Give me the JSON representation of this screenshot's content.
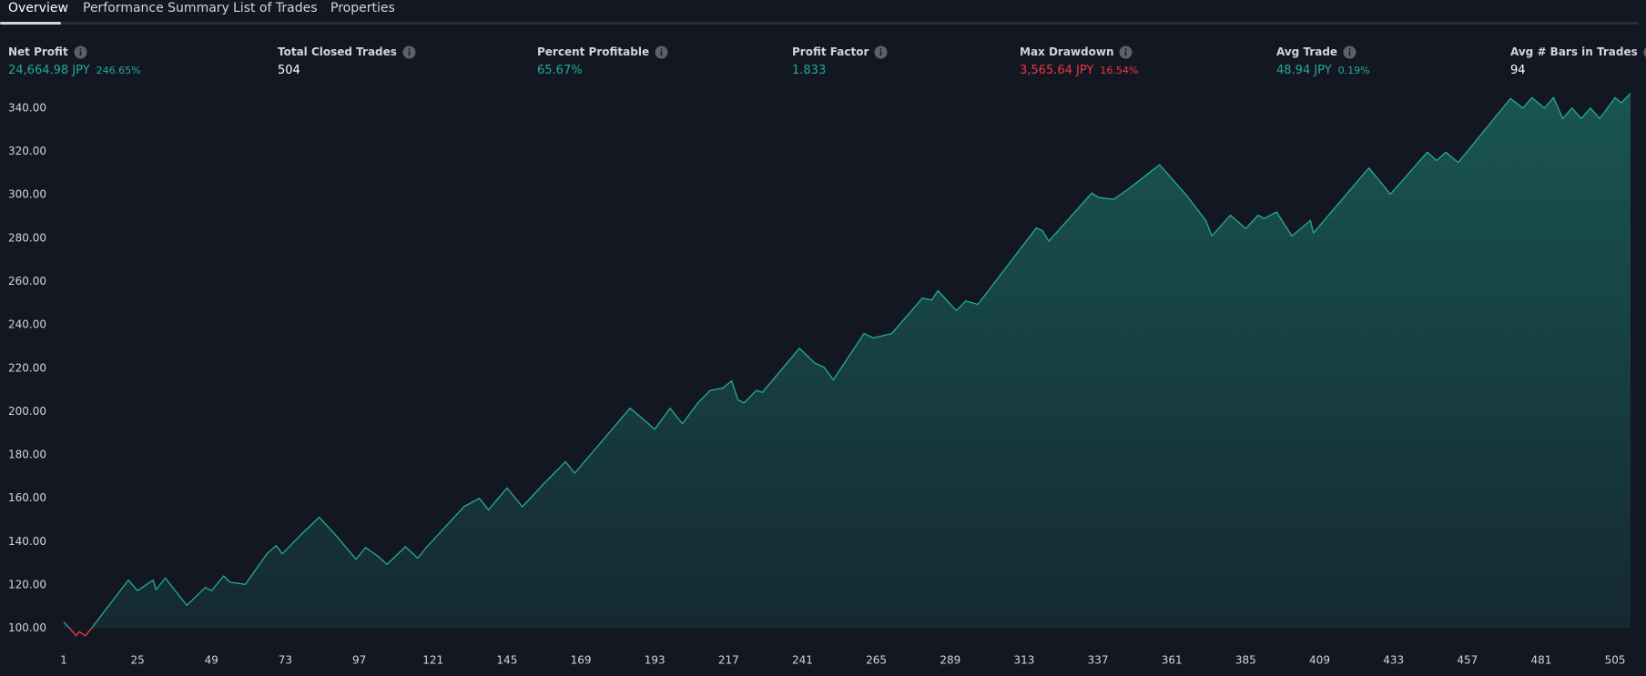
{
  "tabs": [
    "Overview",
    "Performance Summary",
    "List of Trades",
    "Properties"
  ],
  "stats": [
    {
      "label": "Net Profit",
      "value": "24,664.98 JPY",
      "sub": "246.65%"
    },
    {
      "label": "Total Closed Trades",
      "value": "504"
    },
    {
      "label": "Percent Profitable",
      "value": "65.67%"
    },
    {
      "label": "Profit Factor",
      "value": "1.833"
    },
    {
      "label": "Max Drawdown",
      "value": "3,565.64 JPY",
      "sub": "16.54%"
    },
    {
      "label": "Avg Trade",
      "value": "48.94 JPY",
      "sub": "0.19%"
    },
    {
      "label": "Avg # Bars in Trades",
      "value": "94"
    }
  ],
  "chart_data": {
    "type": "area",
    "x": [
      1,
      3,
      5,
      6,
      8,
      10,
      22,
      25,
      30,
      31,
      34,
      41,
      47,
      49,
      53,
      55,
      60,
      67,
      70,
      72,
      78,
      84,
      89,
      96,
      99,
      103,
      106,
      112,
      116,
      119,
      131,
      136,
      139,
      145,
      150,
      157,
      164,
      167,
      185,
      189,
      193,
      198,
      202,
      207,
      211,
      215,
      218,
      220,
      222,
      226,
      228,
      240,
      245,
      248,
      251,
      261,
      264,
      270,
      280,
      283,
      285,
      291,
      294,
      298,
      317,
      319,
      321,
      335,
      337,
      342,
      347,
      357,
      366,
      372,
      374,
      380,
      385,
      389,
      391,
      395,
      400,
      406,
      407,
      425,
      432,
      444,
      447,
      450,
      454,
      471,
      475,
      478,
      482,
      485,
      488,
      491,
      494,
      497,
      500,
      505,
      507,
      510
    ],
    "values": [
      102.9,
      100,
      96.6,
      98.5,
      96.6,
      100,
      122.3,
      117.4,
      122.3,
      117.9,
      123.2,
      110.6,
      118.9,
      117.4,
      124.2,
      121.3,
      120.3,
      134.4,
      138.2,
      134.4,
      143.1,
      151.3,
      143.6,
      131.9,
      137.3,
      133.4,
      129.5,
      137.7,
      132.4,
      137.7,
      156.1,
      160,
      154.7,
      164.8,
      156.1,
      166.8,
      176.9,
      171.6,
      201.6,
      196.8,
      191.9,
      201.6,
      194.4,
      204,
      209.8,
      210.8,
      214.2,
      205.5,
      204,
      209.8,
      208.9,
      229.2,
      222.4,
      220.5,
      214.7,
      236,
      234,
      236,
      252.4,
      251.4,
      255.8,
      246.6,
      251,
      249.5,
      284.8,
      283.4,
      278.6,
      300.8,
      298.9,
      297.9,
      302.8,
      313.9,
      299.4,
      288.2,
      281,
      290.6,
      284.4,
      290.6,
      289.1,
      292.1,
      281,
      288.2,
      282.4,
      312.4,
      300.3,
      319.7,
      315.8,
      319.7,
      314.9,
      344.4,
      340,
      344.9,
      340,
      344.9,
      335.2,
      340,
      335.2,
      340,
      335.2,
      344.9,
      342.4,
      346.8
    ],
    "color": "#22ab94",
    "negative_color": "#f23645",
    "xlim": [
      1,
      510
    ],
    "ylim": [
      94,
      350
    ],
    "xticks": [
      1,
      25,
      49,
      73,
      97,
      121,
      145,
      169,
      193,
      217,
      241,
      265,
      289,
      313,
      337,
      361,
      385,
      409,
      433,
      457,
      481,
      505
    ],
    "yticks": [
      {
        "value": 100,
        "label": "100.00"
      },
      {
        "value": 120,
        "label": "120.00"
      },
      {
        "value": 140,
        "label": "140.00"
      },
      {
        "value": 160,
        "label": "160.00"
      },
      {
        "value": 180,
        "label": "180.00"
      },
      {
        "value": 200,
        "label": "200.00"
      },
      {
        "value": 220,
        "label": "220.00"
      },
      {
        "value": 240,
        "label": "240.00"
      },
      {
        "value": 260,
        "label": "260.00"
      },
      {
        "value": 280,
        "label": "280.00"
      },
      {
        "value": 300,
        "label": "300.00"
      },
      {
        "value": 320,
        "label": "320.00"
      },
      {
        "value": 340,
        "label": "340.00"
      }
    ],
    "grid": false
  }
}
